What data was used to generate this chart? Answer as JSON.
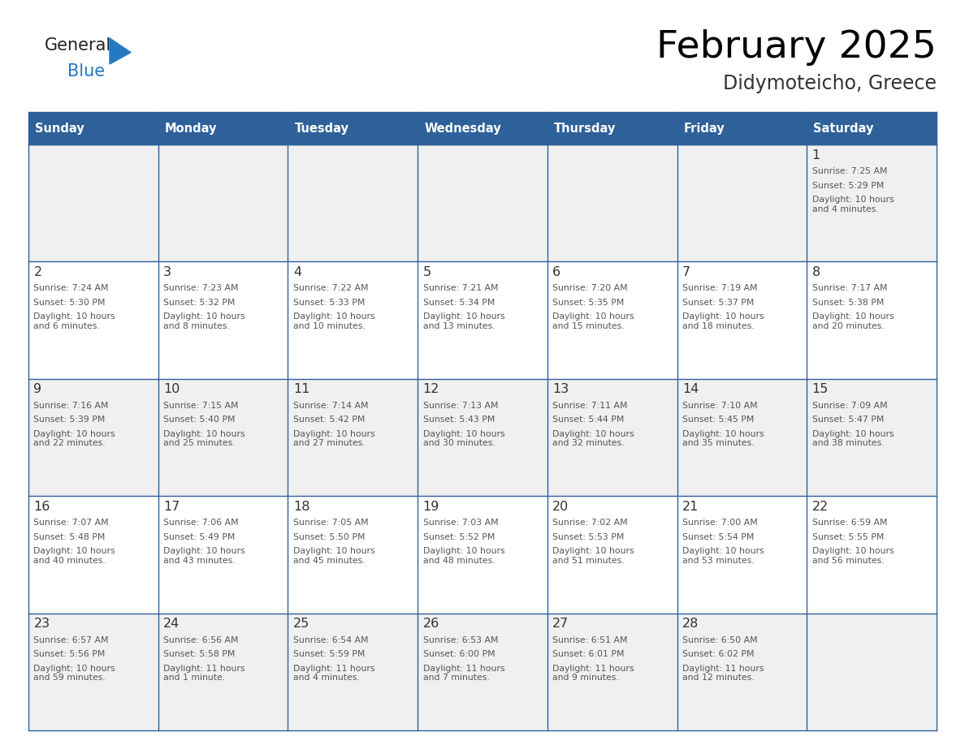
{
  "title": "February 2025",
  "subtitle": "Didymoteicho, Greece",
  "days_of_week": [
    "Sunday",
    "Monday",
    "Tuesday",
    "Wednesday",
    "Thursday",
    "Friday",
    "Saturday"
  ],
  "header_bg": "#2E619A",
  "header_text": "#FFFFFF",
  "row_bg_light": "#F0F0F0",
  "row_bg_white": "#FFFFFF",
  "border_color": "#2E619A",
  "day_number_color": "#333333",
  "text_color": "#555555",
  "logo_general_color": "#222222",
  "logo_blue_color": "#2479C2",
  "calendar_data": [
    [
      {
        "day": "",
        "sunrise": "",
        "sunset": "",
        "daylight": ""
      },
      {
        "day": "",
        "sunrise": "",
        "sunset": "",
        "daylight": ""
      },
      {
        "day": "",
        "sunrise": "",
        "sunset": "",
        "daylight": ""
      },
      {
        "day": "",
        "sunrise": "",
        "sunset": "",
        "daylight": ""
      },
      {
        "day": "",
        "sunrise": "",
        "sunset": "",
        "daylight": ""
      },
      {
        "day": "",
        "sunrise": "",
        "sunset": "",
        "daylight": ""
      },
      {
        "day": "1",
        "sunrise": "Sunrise: 7:25 AM",
        "sunset": "Sunset: 5:29 PM",
        "daylight": "Daylight: 10 hours\nand 4 minutes."
      }
    ],
    [
      {
        "day": "2",
        "sunrise": "Sunrise: 7:24 AM",
        "sunset": "Sunset: 5:30 PM",
        "daylight": "Daylight: 10 hours\nand 6 minutes."
      },
      {
        "day": "3",
        "sunrise": "Sunrise: 7:23 AM",
        "sunset": "Sunset: 5:32 PM",
        "daylight": "Daylight: 10 hours\nand 8 minutes."
      },
      {
        "day": "4",
        "sunrise": "Sunrise: 7:22 AM",
        "sunset": "Sunset: 5:33 PM",
        "daylight": "Daylight: 10 hours\nand 10 minutes."
      },
      {
        "day": "5",
        "sunrise": "Sunrise: 7:21 AM",
        "sunset": "Sunset: 5:34 PM",
        "daylight": "Daylight: 10 hours\nand 13 minutes."
      },
      {
        "day": "6",
        "sunrise": "Sunrise: 7:20 AM",
        "sunset": "Sunset: 5:35 PM",
        "daylight": "Daylight: 10 hours\nand 15 minutes."
      },
      {
        "day": "7",
        "sunrise": "Sunrise: 7:19 AM",
        "sunset": "Sunset: 5:37 PM",
        "daylight": "Daylight: 10 hours\nand 18 minutes."
      },
      {
        "day": "8",
        "sunrise": "Sunrise: 7:17 AM",
        "sunset": "Sunset: 5:38 PM",
        "daylight": "Daylight: 10 hours\nand 20 minutes."
      }
    ],
    [
      {
        "day": "9",
        "sunrise": "Sunrise: 7:16 AM",
        "sunset": "Sunset: 5:39 PM",
        "daylight": "Daylight: 10 hours\nand 22 minutes."
      },
      {
        "day": "10",
        "sunrise": "Sunrise: 7:15 AM",
        "sunset": "Sunset: 5:40 PM",
        "daylight": "Daylight: 10 hours\nand 25 minutes."
      },
      {
        "day": "11",
        "sunrise": "Sunrise: 7:14 AM",
        "sunset": "Sunset: 5:42 PM",
        "daylight": "Daylight: 10 hours\nand 27 minutes."
      },
      {
        "day": "12",
        "sunrise": "Sunrise: 7:13 AM",
        "sunset": "Sunset: 5:43 PM",
        "daylight": "Daylight: 10 hours\nand 30 minutes."
      },
      {
        "day": "13",
        "sunrise": "Sunrise: 7:11 AM",
        "sunset": "Sunset: 5:44 PM",
        "daylight": "Daylight: 10 hours\nand 32 minutes."
      },
      {
        "day": "14",
        "sunrise": "Sunrise: 7:10 AM",
        "sunset": "Sunset: 5:45 PM",
        "daylight": "Daylight: 10 hours\nand 35 minutes."
      },
      {
        "day": "15",
        "sunrise": "Sunrise: 7:09 AM",
        "sunset": "Sunset: 5:47 PM",
        "daylight": "Daylight: 10 hours\nand 38 minutes."
      }
    ],
    [
      {
        "day": "16",
        "sunrise": "Sunrise: 7:07 AM",
        "sunset": "Sunset: 5:48 PM",
        "daylight": "Daylight: 10 hours\nand 40 minutes."
      },
      {
        "day": "17",
        "sunrise": "Sunrise: 7:06 AM",
        "sunset": "Sunset: 5:49 PM",
        "daylight": "Daylight: 10 hours\nand 43 minutes."
      },
      {
        "day": "18",
        "sunrise": "Sunrise: 7:05 AM",
        "sunset": "Sunset: 5:50 PM",
        "daylight": "Daylight: 10 hours\nand 45 minutes."
      },
      {
        "day": "19",
        "sunrise": "Sunrise: 7:03 AM",
        "sunset": "Sunset: 5:52 PM",
        "daylight": "Daylight: 10 hours\nand 48 minutes."
      },
      {
        "day": "20",
        "sunrise": "Sunrise: 7:02 AM",
        "sunset": "Sunset: 5:53 PM",
        "daylight": "Daylight: 10 hours\nand 51 minutes."
      },
      {
        "day": "21",
        "sunrise": "Sunrise: 7:00 AM",
        "sunset": "Sunset: 5:54 PM",
        "daylight": "Daylight: 10 hours\nand 53 minutes."
      },
      {
        "day": "22",
        "sunrise": "Sunrise: 6:59 AM",
        "sunset": "Sunset: 5:55 PM",
        "daylight": "Daylight: 10 hours\nand 56 minutes."
      }
    ],
    [
      {
        "day": "23",
        "sunrise": "Sunrise: 6:57 AM",
        "sunset": "Sunset: 5:56 PM",
        "daylight": "Daylight: 10 hours\nand 59 minutes."
      },
      {
        "day": "24",
        "sunrise": "Sunrise: 6:56 AM",
        "sunset": "Sunset: 5:58 PM",
        "daylight": "Daylight: 11 hours\nand 1 minute."
      },
      {
        "day": "25",
        "sunrise": "Sunrise: 6:54 AM",
        "sunset": "Sunset: 5:59 PM",
        "daylight": "Daylight: 11 hours\nand 4 minutes."
      },
      {
        "day": "26",
        "sunrise": "Sunrise: 6:53 AM",
        "sunset": "Sunset: 6:00 PM",
        "daylight": "Daylight: 11 hours\nand 7 minutes."
      },
      {
        "day": "27",
        "sunrise": "Sunrise: 6:51 AM",
        "sunset": "Sunset: 6:01 PM",
        "daylight": "Daylight: 11 hours\nand 9 minutes."
      },
      {
        "day": "28",
        "sunrise": "Sunrise: 6:50 AM",
        "sunset": "Sunset: 6:02 PM",
        "daylight": "Daylight: 11 hours\nand 12 minutes."
      },
      {
        "day": "",
        "sunrise": "",
        "sunset": "",
        "daylight": ""
      }
    ]
  ]
}
